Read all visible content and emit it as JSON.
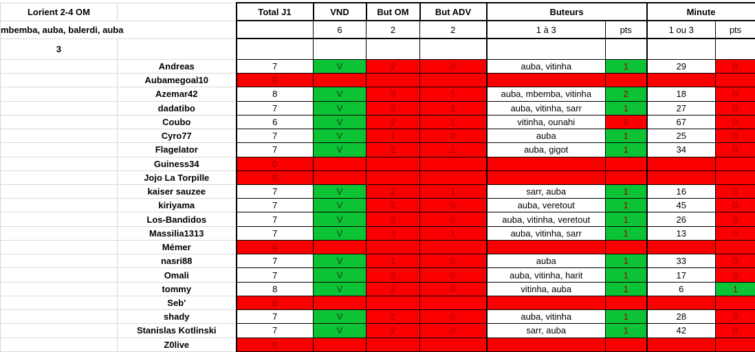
{
  "title_block": {
    "match": "Lorient 2-4 OM",
    "scorers": "mbemba, auba, balerdi, auba",
    "points_row": "3"
  },
  "table": {
    "headers": {
      "total": "Total J1",
      "vnd": "VND",
      "but_om": "But OM",
      "but_adv": "But ADV",
      "buteurs": "Buteurs",
      "minute": "Minute",
      "buteurs_range": "1 à 3",
      "buteurs_pts": "pts",
      "minute_range": "1 ou 3",
      "minute_pts": "pts"
    },
    "answers": {
      "vnd": "6",
      "but_om": "2",
      "but_adv": "2"
    }
  },
  "colors": {
    "green": "#0cc335",
    "red": "#fb0000",
    "dark_red": "#9c0000"
  },
  "rows": [
    {
      "name": "Andreas",
      "total": "7",
      "vnd": "V",
      "but_om": "2",
      "but_adv": "0",
      "buteurs": "auba, vitinha",
      "buteurs_pts": "1",
      "buteurs_pts_state": "green",
      "minute": "29",
      "minute_pts": "0",
      "minute_pts_state": "red",
      "eliminated": false
    },
    {
      "name": "Aubamegoal10",
      "total": "0",
      "eliminated": true
    },
    {
      "name": "Azemar42",
      "total": "8",
      "vnd": "V",
      "but_om": "3",
      "but_adv": "1",
      "buteurs": "auba, mbemba, vitinha",
      "buteurs_pts": "2",
      "buteurs_pts_state": "green",
      "minute": "18",
      "minute_pts": "0",
      "minute_pts_state": "red",
      "eliminated": false
    },
    {
      "name": "dadatibo",
      "total": "7",
      "vnd": "V",
      "but_om": "3",
      "but_adv": "1",
      "buteurs": "auba, vitinha, sarr",
      "buteurs_pts": "1",
      "buteurs_pts_state": "green",
      "minute": "27",
      "minute_pts": "0",
      "minute_pts_state": "red",
      "eliminated": false
    },
    {
      "name": "Coubo",
      "total": "6",
      "vnd": "V",
      "but_om": "2",
      "but_adv": "1",
      "buteurs": "vitinha, ounahi",
      "buteurs_pts": "0",
      "buteurs_pts_state": "red",
      "minute": "67",
      "minute_pts": "0",
      "minute_pts_state": "red",
      "eliminated": false
    },
    {
      "name": "Cyro77",
      "total": "7",
      "vnd": "V",
      "but_om": "1",
      "but_adv": "0",
      "buteurs": "auba",
      "buteurs_pts": "1",
      "buteurs_pts_state": "green",
      "minute": "25",
      "minute_pts": "0",
      "minute_pts_state": "red",
      "eliminated": false
    },
    {
      "name": "Flagelator",
      "total": "7",
      "vnd": "V",
      "but_om": "2",
      "but_adv": "1",
      "buteurs": "auba, gigot",
      "buteurs_pts": "1",
      "buteurs_pts_state": "green",
      "minute": "34",
      "minute_pts": "0",
      "minute_pts_state": "red",
      "eliminated": false
    },
    {
      "name": "Guiness34",
      "total": "0",
      "eliminated": true
    },
    {
      "name": "Jojo La Torpille",
      "total": "0",
      "eliminated": true
    },
    {
      "name": "kaiser sauzee",
      "total": "7",
      "vnd": "V",
      "but_om": "2",
      "but_adv": "1",
      "buteurs": "sarr, auba",
      "buteurs_pts": "1",
      "buteurs_pts_state": "green",
      "minute": "16",
      "minute_pts": "0",
      "minute_pts_state": "red",
      "eliminated": false
    },
    {
      "name": "kiriyama",
      "total": "7",
      "vnd": "V",
      "but_om": "2",
      "but_adv": "0",
      "buteurs": "auba, veretout",
      "buteurs_pts": "1",
      "buteurs_pts_state": "green",
      "minute": "45",
      "minute_pts": "0",
      "minute_pts_state": "red",
      "eliminated": false
    },
    {
      "name": "Los-Bandidos",
      "total": "7",
      "vnd": "V",
      "but_om": "3",
      "but_adv": "0",
      "buteurs": "auba, vitinha, veretout",
      "buteurs_pts": "1",
      "buteurs_pts_state": "green",
      "minute": "26",
      "minute_pts": "0",
      "minute_pts_state": "red",
      "eliminated": false
    },
    {
      "name": "Massilia1313",
      "total": "7",
      "vnd": "V",
      "but_om": "3",
      "but_adv": "1",
      "buteurs": "auba, vitinha, sarr",
      "buteurs_pts": "1",
      "buteurs_pts_state": "green",
      "minute": "13",
      "minute_pts": "0",
      "minute_pts_state": "red",
      "eliminated": false
    },
    {
      "name": "Mémer",
      "total": "0",
      "eliminated": true
    },
    {
      "name": "nasri88",
      "total": "7",
      "vnd": "V",
      "but_om": "1",
      "but_adv": "0",
      "buteurs": "auba",
      "buteurs_pts": "1",
      "buteurs_pts_state": "green",
      "minute": "33",
      "minute_pts": "0",
      "minute_pts_state": "red",
      "eliminated": false
    },
    {
      "name": "Omali",
      "total": "7",
      "vnd": "V",
      "but_om": "3",
      "but_adv": "0",
      "buteurs": "auba, vitinha, harit",
      "buteurs_pts": "1",
      "buteurs_pts_state": "green",
      "minute": "17",
      "minute_pts": "0",
      "minute_pts_state": "red",
      "eliminated": false
    },
    {
      "name": "tommy",
      "total": "8",
      "vnd": "V",
      "but_om": "2",
      "but_adv": "0",
      "buteurs": "vitinha, auba",
      "buteurs_pts": "1",
      "buteurs_pts_state": "green",
      "minute": "6",
      "minute_pts": "1",
      "minute_pts_state": "green",
      "eliminated": false
    },
    {
      "name": "Seb'",
      "total": "0",
      "eliminated": true
    },
    {
      "name": "shady",
      "total": "7",
      "vnd": "V",
      "but_om": "2",
      "but_adv": "0",
      "buteurs": "auba, vitinha",
      "buteurs_pts": "1",
      "buteurs_pts_state": "green",
      "minute": "28",
      "minute_pts": "0",
      "minute_pts_state": "red",
      "eliminated": false
    },
    {
      "name": "Stanislas Kotlinski",
      "total": "7",
      "vnd": "V",
      "but_om": "2",
      "but_adv": "0",
      "buteurs": "sarr, auba",
      "buteurs_pts": "1",
      "buteurs_pts_state": "green",
      "minute": "42",
      "minute_pts": "0",
      "minute_pts_state": "red",
      "eliminated": false
    },
    {
      "name": "Z0live",
      "total": "0",
      "eliminated": true
    }
  ]
}
